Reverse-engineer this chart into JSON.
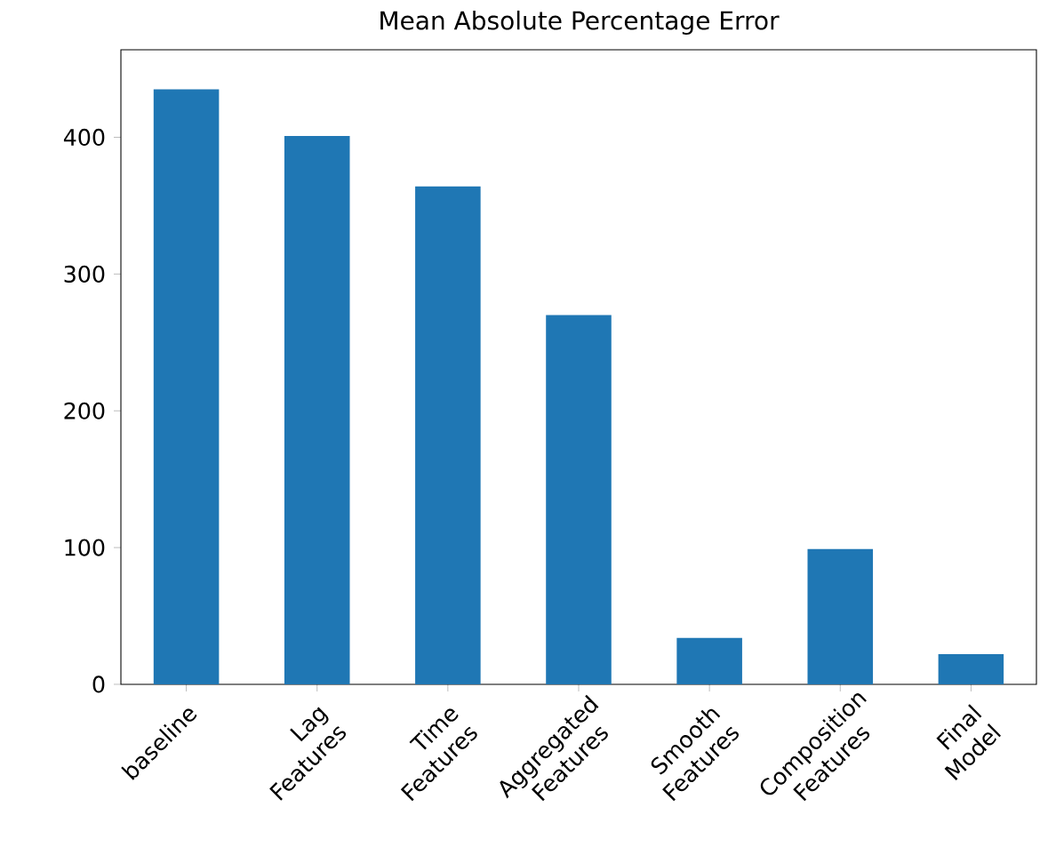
{
  "chart_data": {
    "type": "bar",
    "title": "Mean Absolute Percentage Error",
    "categories": [
      "baseline",
      "Lag Features",
      "Time Features",
      "Aggregated Features",
      "Smooth Features",
      "Composition Features",
      "Final Model"
    ],
    "values": [
      435,
      401,
      364,
      270,
      34,
      99,
      22
    ],
    "color": "#1f77b4",
    "ylim": [
      0,
      464
    ],
    "yticks": [
      0,
      100,
      200,
      300,
      400
    ]
  }
}
